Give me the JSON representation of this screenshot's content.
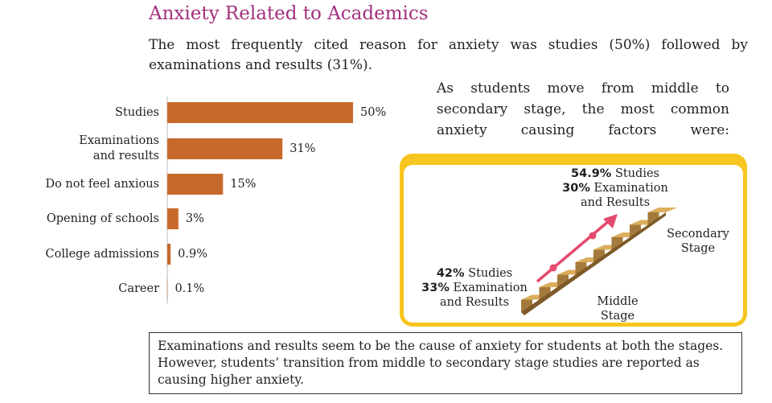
{
  "title": "Anxiety Related to Academics",
  "intro": "The most frequently cited reason for anxiety was studies (50%) followed by examinations and results (31%).",
  "chart_data": {
    "type": "bar",
    "orientation": "horizontal",
    "color": "#c8692c",
    "categories": [
      "Studies",
      "Examinations\nand results",
      "Do not feel anxious",
      "Opening of schools",
      "College admissions",
      "Career"
    ],
    "values": [
      50,
      31,
      15,
      3,
      0.9,
      0.1
    ],
    "value_labels": [
      "50%",
      "31%",
      "15%",
      "3%",
      "0.9%",
      "0.1%"
    ]
  },
  "transition_text": "As students move from middle to secondary stage, the most common anxiety causing factors were:",
  "secondary": {
    "stage": "Secondary Stage",
    "items": [
      {
        "value": "54.9%",
        "label": "Studies"
      },
      {
        "value": "30%",
        "label": "Examination and Results"
      }
    ]
  },
  "middle": {
    "stage": "Middle Stage",
    "items": [
      {
        "value": "42%",
        "label": "Studies"
      },
      {
        "value": "33%",
        "label": "Examination and Results"
      }
    ]
  },
  "conclusion": "Examinations and results seem to be the cause of anxiety for students at both the stages. However, students’ transition from middle to secondary stage studies are reported as causing higher anxiety."
}
